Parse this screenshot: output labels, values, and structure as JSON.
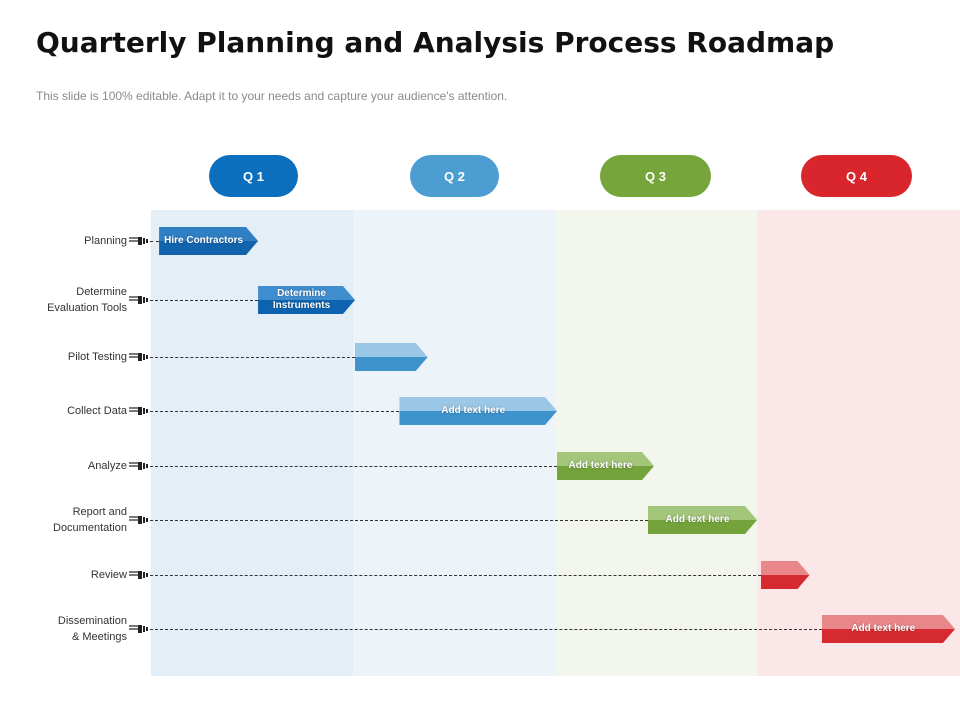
{
  "title": "Quarterly Planning and Analysis Process Roadmap",
  "subtitle": "This slide is 100% editable. Adapt it to your needs and capture your audience's attention.",
  "quarters": [
    {
      "label": "Q 1",
      "color": "#0b6fbe",
      "band": "#e4eef7"
    },
    {
      "label": "Q 2",
      "color": "#4b9dd2",
      "band": "#ecf4fa"
    },
    {
      "label": "Q 3",
      "color": "#76a53c",
      "band": "#f2f6ec"
    },
    {
      "label": "Q 4",
      "color": "#d8262c",
      "band": "#fbe7e8"
    }
  ],
  "rows": [
    {
      "label": "Planning",
      "task": {
        "text": "Hire Contractors",
        "quarter_start": 0.04,
        "quarter_end": 0.53,
        "top": "#2f7fc4",
        "bottom": "#1163ac"
      }
    },
    {
      "label": "Determine\nEvaluation Tools",
      "task": {
        "text": "Determine\nInstruments",
        "quarter_start": 0.53,
        "quarter_end": 1.01,
        "top": "#3f8ed0",
        "bottom": "#0e63b0"
      }
    },
    {
      "label": "Pilot Testing",
      "task": {
        "text": "",
        "quarter_start": 1.01,
        "quarter_end": 1.37,
        "top": "#9ac7e6",
        "bottom": "#3e93cc"
      }
    },
    {
      "label": "Collect Data",
      "task": {
        "text": "Add text here",
        "quarter_start": 1.23,
        "quarter_end": 2.01,
        "top": "#9ac7e6",
        "bottom": "#3e93cc"
      }
    },
    {
      "label": "Analyze",
      "task": {
        "text": "Add text here",
        "quarter_start": 2.01,
        "quarter_end": 2.49,
        "top": "#a4c67b",
        "bottom": "#74a33b"
      }
    },
    {
      "label": "Report and\nDocumentation",
      "task": {
        "text": "Add text here",
        "quarter_start": 2.46,
        "quarter_end": 3.0,
        "top": "#a4c67b",
        "bottom": "#74a33b"
      }
    },
    {
      "label": "Review",
      "task": {
        "text": "",
        "quarter_start": 3.02,
        "quarter_end": 3.26,
        "top": "#e9868a",
        "bottom": "#d42a30"
      }
    },
    {
      "label": "Dissemination\n& Meetings",
      "task": {
        "text": "Add text here",
        "quarter_start": 3.32,
        "quarter_end": 3.99,
        "top": "#e9868a",
        "bottom": "#d42a30"
      }
    }
  ]
}
